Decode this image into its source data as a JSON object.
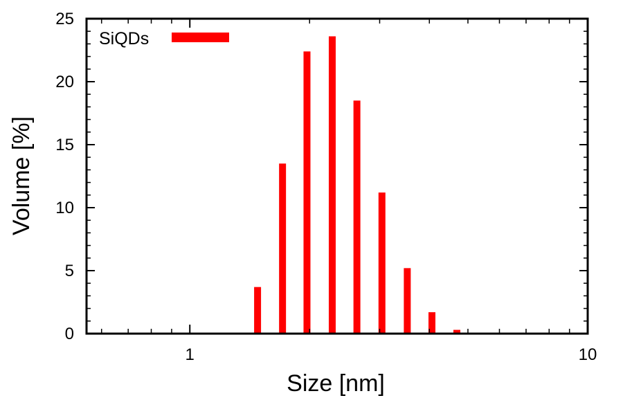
{
  "chart_data": {
    "type": "bar",
    "xlabel": "Size [nm]",
    "ylabel": "Volume [%]",
    "xscale": "log",
    "xlim": [
      0.55,
      10
    ],
    "ylim": [
      0,
      25
    ],
    "x_tick_labels": [
      {
        "value": 1,
        "label": "1"
      },
      {
        "value": 10,
        "label": "10"
      }
    ],
    "y_tick_labels": [
      {
        "value": 0,
        "label": "0"
      },
      {
        "value": 5,
        "label": "5"
      },
      {
        "value": 10,
        "label": "10"
      },
      {
        "value": 15,
        "label": "15"
      },
      {
        "value": 20,
        "label": "20"
      },
      {
        "value": 25,
        "label": "25"
      }
    ],
    "grid": false,
    "legend_position": "top-left",
    "color": "#ff0000",
    "series": [
      {
        "name": "SiQDs",
        "x": [
          1.48,
          1.71,
          1.97,
          2.28,
          2.63,
          3.04,
          3.52,
          4.06,
          4.69
        ],
        "values": [
          3.7,
          13.5,
          22.4,
          23.6,
          18.5,
          11.2,
          5.2,
          1.7,
          0.3
        ]
      }
    ]
  }
}
